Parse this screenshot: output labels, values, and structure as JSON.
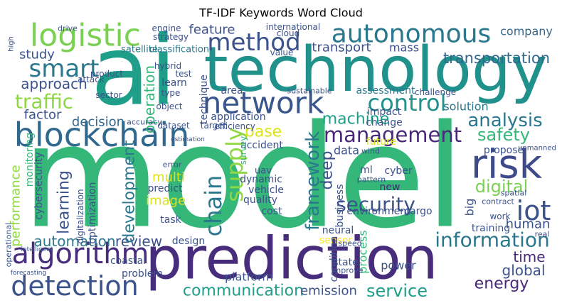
{
  "chart_data": {
    "type": "wordcloud",
    "title": "TF-IDF Keywords Word Cloud",
    "background": "#ffffff",
    "words": [
      {
        "text": "ai",
        "color": "#1f9e89"
      },
      {
        "text": "technology",
        "color": "#21918c"
      },
      {
        "text": "model",
        "color": "#35b779"
      },
      {
        "text": "prediction",
        "color": "#472d7b"
      },
      {
        "text": "logistic",
        "color": "#7ad151"
      },
      {
        "text": "method",
        "color": "#3b528b"
      },
      {
        "text": "autonomous",
        "color": "#2a788e"
      },
      {
        "text": "company",
        "color": "#31688e"
      },
      {
        "text": "network",
        "color": "#39568c"
      },
      {
        "text": "control",
        "color": "#21918c"
      },
      {
        "text": "blockchain",
        "color": "#31688e"
      },
      {
        "text": "smart",
        "color": "#2a788e"
      },
      {
        "text": "approach",
        "color": "#3b528b"
      },
      {
        "text": "traffic",
        "color": "#8fd744"
      },
      {
        "text": "study",
        "color": "#3b528b"
      },
      {
        "text": "factor",
        "color": "#3b528b"
      },
      {
        "text": "decision",
        "color": "#31688e"
      },
      {
        "text": "risk",
        "color": "#3e4a89"
      },
      {
        "text": "iot",
        "color": "#3b528b"
      },
      {
        "text": "management",
        "color": "#482878"
      },
      {
        "text": "analysis",
        "color": "#2a788e"
      },
      {
        "text": "safety",
        "color": "#35b779"
      },
      {
        "text": "digital",
        "color": "#7ad151"
      },
      {
        "text": "security",
        "color": "#3b528b"
      },
      {
        "text": "machine",
        "color": "#1f9e89"
      },
      {
        "text": "supply",
        "color": "#8fd744"
      },
      {
        "text": "chain",
        "color": "#2a788e"
      },
      {
        "text": "base",
        "color": "#dde318"
      },
      {
        "text": "transport",
        "color": "#3b528b"
      },
      {
        "text": "transportation",
        "color": "#31688e"
      },
      {
        "text": "mass",
        "color": "#3b528b"
      },
      {
        "text": "feature",
        "color": "#3b528b"
      },
      {
        "text": "satellite",
        "color": "#2a788e"
      },
      {
        "text": "classification",
        "color": "#2a788e"
      },
      {
        "text": "algorithm",
        "color": "#472d7b"
      },
      {
        "text": "detection",
        "color": "#3b528b"
      },
      {
        "text": "communication",
        "color": "#1f9e89"
      },
      {
        "text": "service",
        "color": "#1f9e89"
      },
      {
        "text": "emission",
        "color": "#3b528b"
      },
      {
        "text": "energy",
        "color": "#482878"
      },
      {
        "text": "information",
        "color": "#2a788e"
      },
      {
        "text": "human",
        "color": "#3b528b"
      },
      {
        "text": "time",
        "color": "#482878"
      },
      {
        "text": "global",
        "color": "#3b528b"
      },
      {
        "text": "automation",
        "color": "#2a788e"
      },
      {
        "text": "review",
        "color": "#3b528b"
      },
      {
        "text": "development",
        "color": "#2a788e"
      },
      {
        "text": "learning",
        "color": "#3b528b"
      },
      {
        "text": "performance",
        "color": "#8fd744"
      },
      {
        "text": "image",
        "color": "#dde318"
      },
      {
        "text": "multi",
        "color": "#dde318"
      },
      {
        "text": "framework",
        "color": "#2a788e"
      },
      {
        "text": "deep",
        "color": "#3b528b"
      },
      {
        "text": "operation",
        "color": "#35b779"
      },
      {
        "text": "platform",
        "color": "#3b528b"
      },
      {
        "text": "design",
        "color": "#3b528b"
      },
      {
        "text": "sensor",
        "color": "#fde725"
      },
      {
        "text": "power",
        "color": "#3b528b"
      },
      {
        "text": "process",
        "color": "#35b779"
      },
      {
        "text": "condition",
        "color": "#3b528b"
      },
      {
        "text": "neural",
        "color": "#3b528b"
      },
      {
        "text": "environment",
        "color": "#3b528b"
      },
      {
        "text": "cost",
        "color": "#3b528b"
      },
      {
        "text": "quality",
        "color": "#3b528b"
      },
      {
        "text": "vehicle",
        "color": "#3b528b"
      },
      {
        "text": "dynamic",
        "color": "#3b528b"
      },
      {
        "text": "uav",
        "color": "#3b528b"
      },
      {
        "text": "ml",
        "color": "#3b528b"
      },
      {
        "text": "cyber",
        "color": "#3b528b"
      },
      {
        "text": "new",
        "color": "#482878"
      },
      {
        "text": "data",
        "color": "#3b528b"
      },
      {
        "text": "future",
        "color": "#dde318"
      },
      {
        "text": "accident",
        "color": "#3b528b"
      },
      {
        "text": "survey",
        "color": "#35b779"
      },
      {
        "text": "efficiency",
        "color": "#3b528b"
      },
      {
        "text": "application",
        "color": "#3b528b"
      },
      {
        "text": "target",
        "color": "#3b528b"
      },
      {
        "text": "dataset",
        "color": "#3b528b"
      },
      {
        "text": "accuracy",
        "color": "#3b528b"
      },
      {
        "text": "sector",
        "color": "#3b528b"
      },
      {
        "text": "object",
        "color": "#3b528b"
      },
      {
        "text": "type",
        "color": "#3b528b"
      },
      {
        "text": "learn",
        "color": "#3b528b"
      },
      {
        "text": "technique",
        "color": "#3b528b"
      },
      {
        "text": "area",
        "color": "#3b528b"
      },
      {
        "text": "assessment",
        "color": "#2a788e"
      },
      {
        "text": "sustainable",
        "color": "#3b528b"
      },
      {
        "text": "challenge",
        "color": "#3b528b"
      },
      {
        "text": "impact",
        "color": "#3b528b"
      },
      {
        "text": "change",
        "color": "#3b528b"
      },
      {
        "text": "solution",
        "color": "#2a788e"
      },
      {
        "text": "propose",
        "color": "#3b528b"
      },
      {
        "text": "attack",
        "color": "#3b528b"
      },
      {
        "text": "product",
        "color": "#3b528b"
      },
      {
        "text": "hybrid",
        "color": "#3b528b"
      },
      {
        "text": "test",
        "color": "#3b528b"
      },
      {
        "text": "engine",
        "color": "#3b528b"
      },
      {
        "text": "strategy",
        "color": "#3b528b"
      },
      {
        "text": "drive",
        "color": "#3b528b"
      },
      {
        "text": "international",
        "color": "#3b528b"
      },
      {
        "text": "cloud",
        "color": "#3b528b"
      },
      {
        "text": "value",
        "color": "#3b528b"
      },
      {
        "text": "monitoring",
        "color": "#35b779"
      },
      {
        "text": "cybersecurity",
        "color": "#3b528b"
      },
      {
        "text": "optimization",
        "color": "#3b528b"
      },
      {
        "text": "digitalization",
        "color": "#3b528b"
      },
      {
        "text": "predict",
        "color": "#3b528b"
      },
      {
        "text": "task",
        "color": "#3b528b"
      },
      {
        "text": "error",
        "color": "#3b528b"
      },
      {
        "text": "cargo",
        "color": "#3b528b"
      },
      {
        "text": "business",
        "color": "#3b528b"
      },
      {
        "text": "problem",
        "color": "#3b528b"
      },
      {
        "text": "coastal",
        "color": "#3b528b"
      },
      {
        "text": "state",
        "color": "#3b528b"
      },
      {
        "text": "improve",
        "color": "#3b528b"
      },
      {
        "text": "speed",
        "color": "#3b528b"
      },
      {
        "text": "training",
        "color": "#3b528b"
      },
      {
        "text": "work",
        "color": "#3b528b"
      },
      {
        "text": "big",
        "color": "#3b528b"
      },
      {
        "text": "real",
        "color": "#3b528b"
      },
      {
        "text": "contract",
        "color": "#3b528b"
      },
      {
        "text": "spatial",
        "color": "#3b528b"
      },
      {
        "text": "unmanned",
        "color": "#3b528b"
      },
      {
        "text": "wind",
        "color": "#3b528b"
      },
      {
        "text": "pattern",
        "color": "#3b528b"
      },
      {
        "text": "operational",
        "color": "#3b528b"
      },
      {
        "text": "forecasting",
        "color": "#3b528b"
      },
      {
        "text": "intelligent",
        "color": "#3b528b"
      },
      {
        "text": "high",
        "color": "#3b528b"
      },
      {
        "text": "estimation",
        "color": "#3b528b"
      }
    ]
  }
}
